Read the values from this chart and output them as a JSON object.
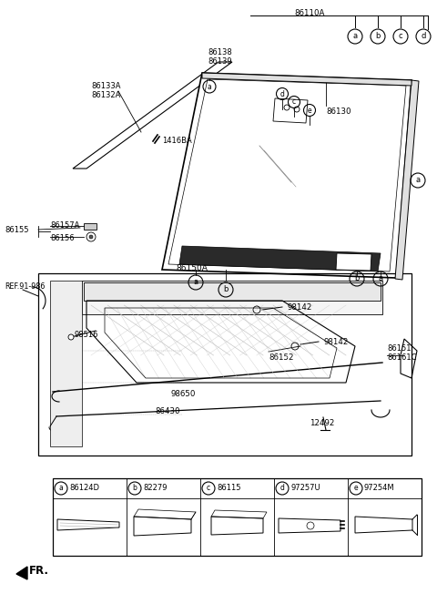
{
  "bg_color": "#ffffff",
  "line_color": "#000000",
  "legend_items": [
    {
      "letter": "a",
      "part": "86124D"
    },
    {
      "letter": "b",
      "part": "82279"
    },
    {
      "letter": "c",
      "part": "86115"
    },
    {
      "letter": "d",
      "part": "97257U"
    },
    {
      "letter": "e",
      "part": "97254M"
    }
  ]
}
